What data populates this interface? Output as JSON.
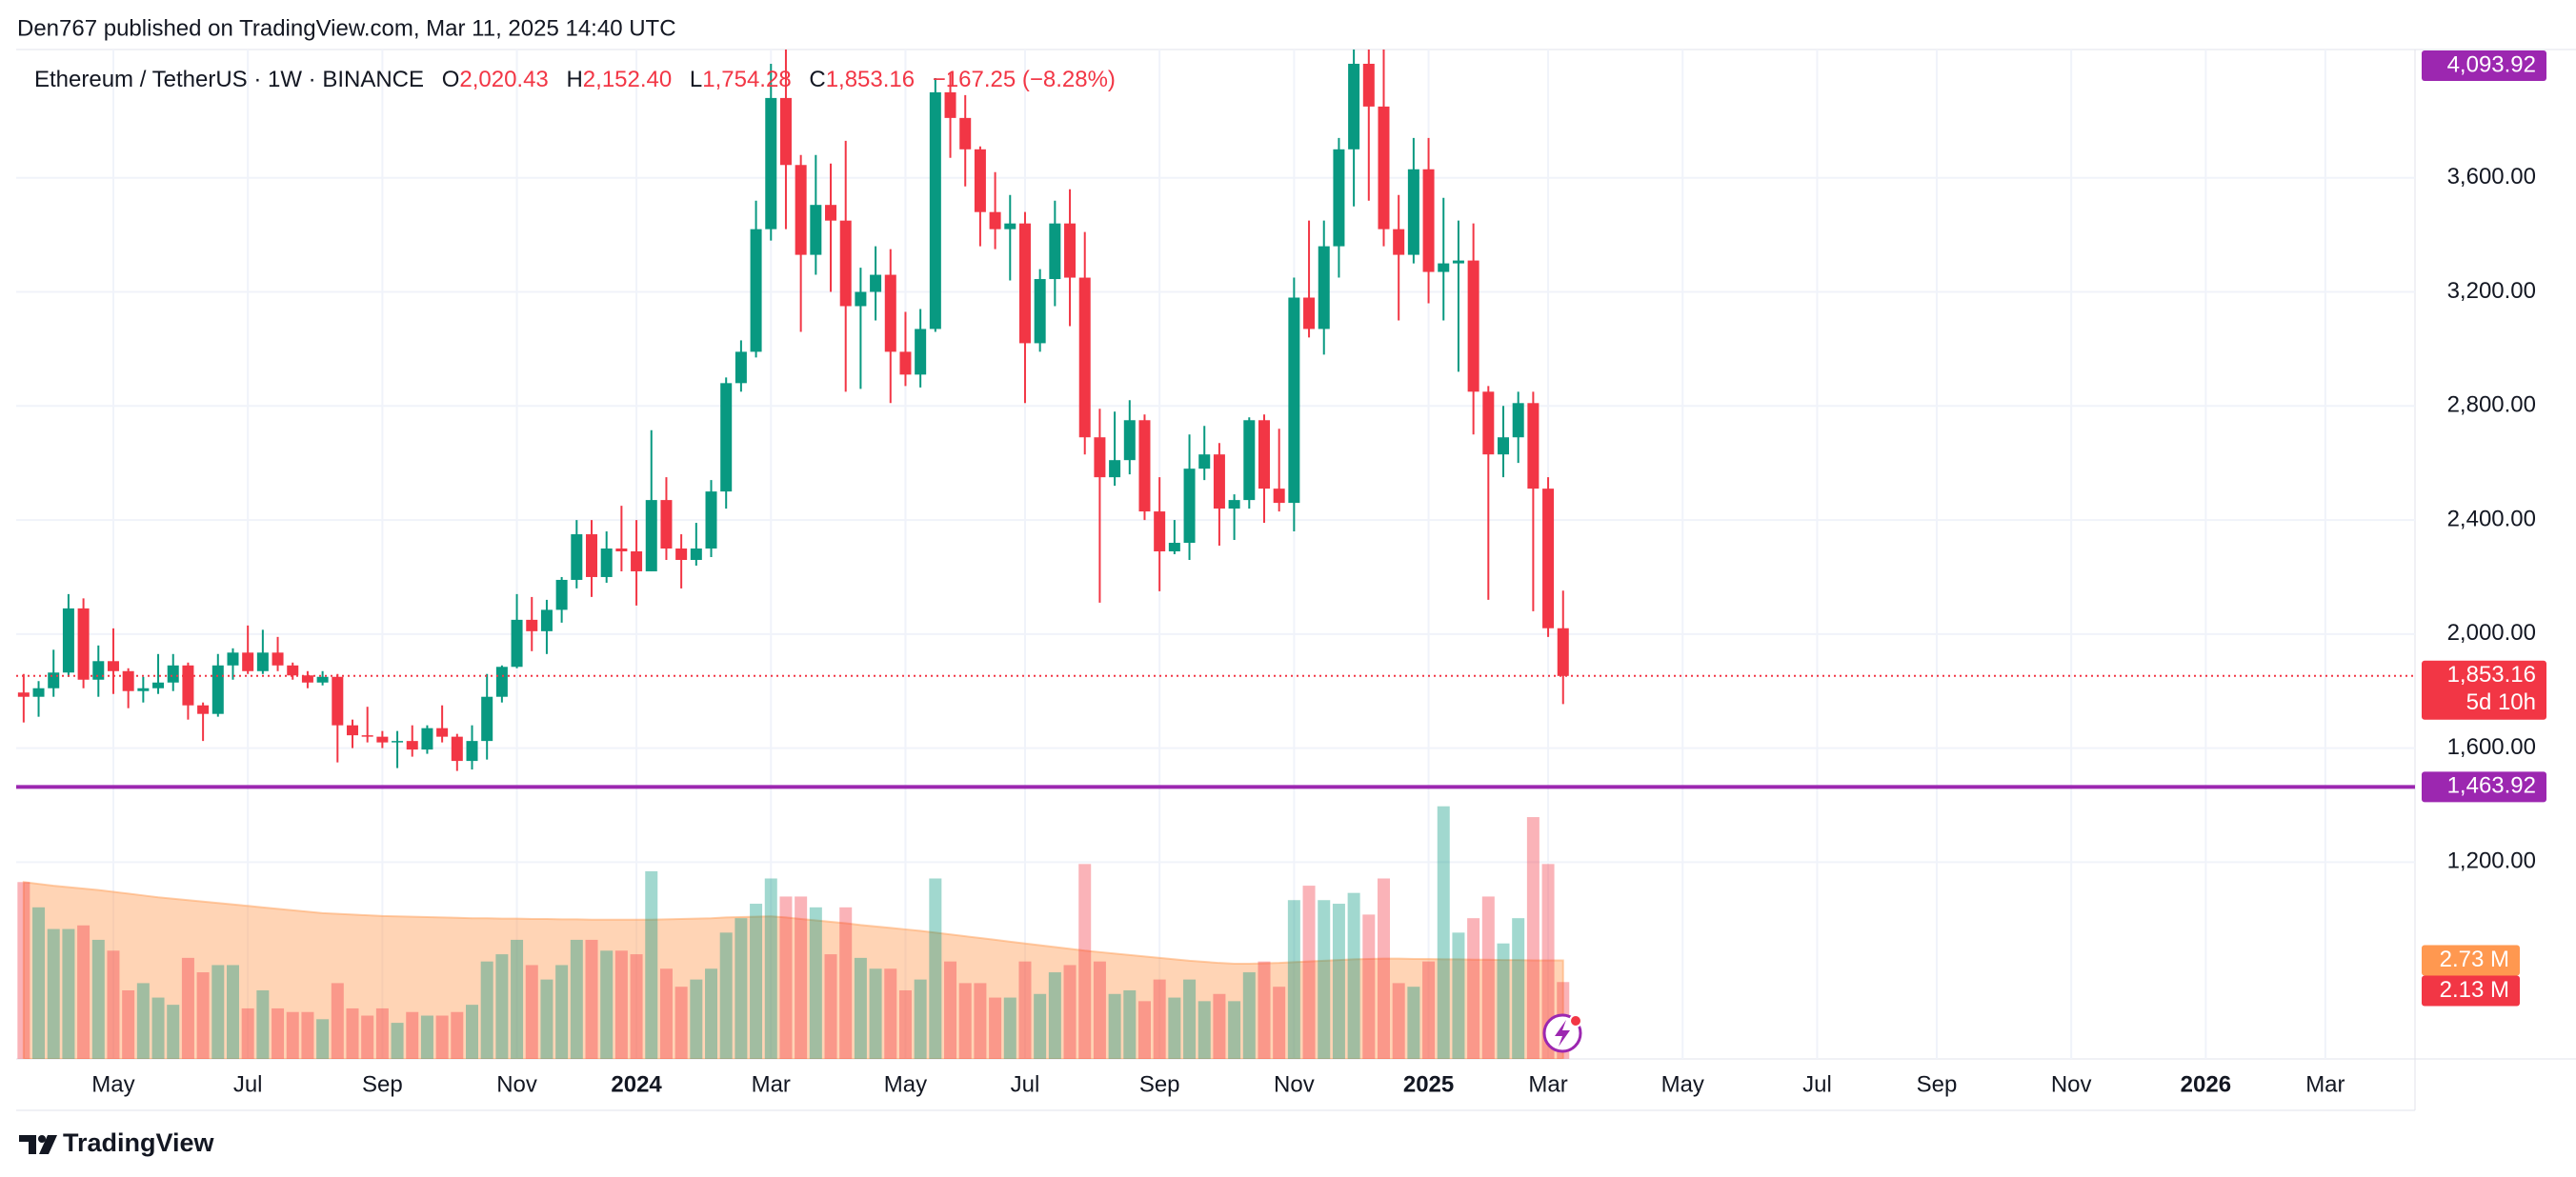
{
  "header": {
    "published": "Den767 published on TradingView.com, Mar 11, 2025 14:40 UTC"
  },
  "footer": {
    "brand": "TradingView"
  },
  "chart_data": {
    "type": "candlestick",
    "legend": {
      "symbol": "Ethereum / TetherUS · 1W · BINANCE",
      "ohlc_keys": [
        "O",
        "H",
        "L",
        "C"
      ],
      "ohlc_labels": [
        "2,020.43",
        "2,152.40",
        "1,754.28",
        "1,853.16"
      ],
      "change": "−167.25 (−8.28%)"
    },
    "up_color": "#089981",
    "down_color": "#f23645",
    "volume_ma_color": "#ff9f5a",
    "xlim": [
      -0.5,
      160
    ],
    "xticks": [
      {
        "value": 6,
        "label": "May"
      },
      {
        "value": 15,
        "label": "Jul"
      },
      {
        "value": 24,
        "label": "Sep"
      },
      {
        "value": 33,
        "label": "Nov"
      },
      {
        "value": 41,
        "label": "2024"
      },
      {
        "value": 50,
        "label": "Mar"
      },
      {
        "value": 59,
        "label": "May"
      },
      {
        "value": 67,
        "label": "Jul"
      },
      {
        "value": 76,
        "label": "Sep"
      },
      {
        "value": 85,
        "label": "Nov"
      },
      {
        "value": 94,
        "label": "2025"
      },
      {
        "value": 102,
        "label": "Mar"
      },
      {
        "value": 111,
        "label": "May"
      },
      {
        "value": 120,
        "label": "Jul"
      },
      {
        "value": 128,
        "label": "Sep"
      },
      {
        "value": 137,
        "label": "Nov"
      },
      {
        "value": 146,
        "label": "2026"
      },
      {
        "value": 154,
        "label": "Mar"
      }
    ],
    "ylim": [
      510,
      4050
    ],
    "yticks": [
      {
        "value": 1200,
        "label": "1,200.00"
      },
      {
        "value": 1600,
        "label": "1,600.00"
      },
      {
        "value": 2000,
        "label": "2,000.00"
      },
      {
        "value": 2400,
        "label": "2,400.00"
      },
      {
        "value": 2800,
        "label": "2,800.00"
      },
      {
        "value": 3200,
        "label": "3,200.00"
      },
      {
        "value": 3600,
        "label": "3,600.00"
      }
    ],
    "grid": true,
    "open": [
      1795,
      1780,
      1810,
      1865,
      2090,
      1840,
      1905,
      1870,
      1800,
      1810,
      1830,
      1890,
      1750,
      1720,
      1890,
      1935,
      1870,
      1935,
      1890,
      1855,
      1830,
      1850,
      1680,
      1645,
      1640,
      1620,
      1625,
      1595,
      1670,
      1640,
      1555,
      1625,
      1780,
      1885,
      2050,
      2010,
      2085,
      2190,
      2350,
      2200,
      2300,
      2290,
      2220,
      2470,
      2300,
      2260,
      2300,
      2500,
      2880,
      2990,
      3420,
      3880,
      3645,
      3330,
      3505,
      3450,
      3150,
      3200,
      3260,
      2990,
      2910,
      3070,
      3900,
      3810,
      3700,
      3480,
      3420,
      3440,
      3020,
      3245,
      3440,
      3250,
      2690,
      2550,
      2610,
      2750,
      2430,
      2290,
      2320,
      2580,
      2630,
      2440,
      2470,
      2750,
      2510,
      2460,
      3180,
      3070,
      3360,
      3700,
      4000,
      3850,
      3420,
      3330,
      3630,
      3270,
      3300,
      3310,
      2850,
      2630,
      2690,
      2810,
      2510,
      2020.43
    ],
    "high": [
      1860,
      1835,
      1945,
      2140,
      2125,
      1960,
      2020,
      1880,
      1850,
      1930,
      1930,
      1900,
      1760,
      1930,
      1950,
      2030,
      2015,
      1990,
      1900,
      1870,
      1870,
      1860,
      1700,
      1745,
      1660,
      1660,
      1680,
      1680,
      1750,
      1650,
      1680,
      1860,
      1890,
      2140,
      2130,
      2120,
      2200,
      2400,
      2400,
      2360,
      2450,
      2400,
      2715,
      2550,
      2350,
      2390,
      2540,
      2900,
      3030,
      3520,
      4000,
      4094,
      3680,
      3680,
      3650,
      3730,
      3285,
      3360,
      3350,
      3130,
      3140,
      3950,
      3970,
      3890,
      3710,
      3620,
      3540,
      3480,
      3280,
      3520,
      3560,
      3410,
      2790,
      2780,
      2820,
      2770,
      2550,
      2400,
      2700,
      2730,
      2670,
      2490,
      2760,
      2770,
      2720,
      3250,
      3450,
      3450,
      3740,
      4090,
      4050,
      4107,
      3540,
      3740,
      3740,
      3530,
      3450,
      3440,
      2870,
      2800,
      2850,
      2850,
      2550,
      2152.4
    ],
    "low": [
      1690,
      1710,
      1780,
      1850,
      1810,
      1780,
      1790,
      1740,
      1760,
      1790,
      1800,
      1700,
      1625,
      1710,
      1840,
      1860,
      1860,
      1870,
      1840,
      1810,
      1820,
      1550,
      1600,
      1620,
      1600,
      1530,
      1570,
      1580,
      1620,
      1520,
      1525,
      1560,
      1760,
      1880,
      1940,
      1930,
      2040,
      2160,
      2130,
      2180,
      2220,
      2100,
      2220,
      2260,
      2160,
      2240,
      2270,
      2440,
      2850,
      2970,
      3380,
      3420,
      3060,
      3260,
      3200,
      2850,
      2860,
      3100,
      2810,
      2870,
      2865,
      3060,
      3670,
      3570,
      3360,
      3350,
      3240,
      2810,
      2990,
      3150,
      3080,
      2630,
      2110,
      2520,
      2560,
      2400,
      2150,
      2280,
      2260,
      2540,
      2310,
      2330,
      2440,
      2390,
      2430,
      2360,
      3040,
      2980,
      3250,
      3500,
      3520,
      3360,
      3100,
      3300,
      3160,
      3100,
      2920,
      2700,
      2120,
      2550,
      2600,
      2080,
      1990,
      1754.28
    ],
    "close": [
      1780,
      1810,
      1865,
      2090,
      1840,
      1905,
      1870,
      1800,
      1810,
      1830,
      1890,
      1750,
      1720,
      1890,
      1935,
      1870,
      1935,
      1890,
      1855,
      1830,
      1850,
      1680,
      1645,
      1640,
      1620,
      1625,
      1595,
      1670,
      1640,
      1555,
      1625,
      1780,
      1885,
      2050,
      2010,
      2085,
      2190,
      2350,
      2200,
      2300,
      2290,
      2220,
      2470,
      2300,
      2260,
      2300,
      2500,
      2880,
      2990,
      3420,
      3880,
      3645,
      3330,
      3505,
      3450,
      3150,
      3200,
      3260,
      2990,
      2910,
      3070,
      3900,
      3810,
      3700,
      3480,
      3420,
      3440,
      3020,
      3245,
      3440,
      3250,
      2690,
      2550,
      2610,
      2750,
      2430,
      2290,
      2320,
      2580,
      2630,
      2440,
      2470,
      2750,
      2510,
      2460,
      3180,
      3070,
      3360,
      3700,
      4000,
      3850,
      3420,
      3330,
      3630,
      3270,
      3300,
      3310,
      2850,
      2630,
      2690,
      2810,
      2510,
      2020.43,
      1853.16
    ],
    "volume_lim": [
      0,
      10
    ],
    "volume": [
      4.9,
      4.2,
      3.6,
      3.6,
      3.7,
      3.3,
      3.0,
      1.9,
      2.1,
      1.7,
      1.5,
      2.8,
      2.4,
      2.6,
      2.6,
      1.4,
      1.9,
      1.4,
      1.3,
      1.3,
      1.1,
      2.1,
      1.4,
      1.2,
      1.4,
      1.0,
      1.3,
      1.2,
      1.2,
      1.3,
      1.5,
      2.7,
      2.9,
      3.3,
      2.6,
      2.2,
      2.6,
      3.3,
      3.3,
      3.0,
      3.0,
      2.9,
      5.2,
      2.5,
      2.0,
      2.2,
      2.5,
      3.5,
      3.9,
      4.3,
      5.0,
      4.5,
      4.5,
      4.2,
      2.9,
      4.2,
      2.8,
      2.5,
      2.5,
      1.9,
      2.2,
      5.0,
      2.7,
      2.1,
      2.1,
      1.7,
      1.7,
      2.7,
      1.8,
      2.4,
      2.6,
      5.4,
      2.7,
      1.8,
      1.9,
      1.6,
      2.2,
      1.7,
      2.2,
      1.6,
      1.8,
      1.6,
      2.4,
      2.7,
      2.0,
      4.4,
      4.8,
      4.4,
      4.3,
      4.6,
      4.0,
      5.0,
      2.1,
      2.0,
      2.7,
      7.0,
      3.5,
      3.9,
      4.5,
      3.2,
      3.9,
      6.7,
      5.4,
      2.13
    ],
    "volume_ma": [
      4.9,
      4.85,
      4.8,
      4.76,
      4.72,
      4.68,
      4.63,
      4.58,
      4.53,
      4.48,
      4.44,
      4.4,
      4.36,
      4.32,
      4.28,
      4.24,
      4.2,
      4.16,
      4.12,
      4.08,
      4.04,
      4.02,
      4.0,
      3.98,
      3.96,
      3.95,
      3.94,
      3.93,
      3.92,
      3.91,
      3.9,
      3.9,
      3.89,
      3.89,
      3.88,
      3.88,
      3.87,
      3.87,
      3.86,
      3.86,
      3.86,
      3.86,
      3.86,
      3.87,
      3.88,
      3.89,
      3.9,
      3.92,
      3.93,
      3.94,
      3.95,
      3.92,
      3.88,
      3.84,
      3.8,
      3.76,
      3.71,
      3.67,
      3.63,
      3.59,
      3.55,
      3.5,
      3.45,
      3.4,
      3.35,
      3.3,
      3.25,
      3.2,
      3.15,
      3.1,
      3.05,
      3.0,
      2.96,
      2.92,
      2.88,
      2.84,
      2.8,
      2.76,
      2.72,
      2.69,
      2.66,
      2.64,
      2.64,
      2.65,
      2.66,
      2.68,
      2.7,
      2.72,
      2.74,
      2.76,
      2.77,
      2.78,
      2.78,
      2.77,
      2.77,
      2.76,
      2.76,
      2.75,
      2.75,
      2.74,
      2.74,
      2.73,
      2.73,
      2.73
    ],
    "price_labels": [
      {
        "value": 4093.92,
        "label": "4,093.92",
        "color": "#9c27b0",
        "line": "solid"
      },
      {
        "value": 1853.16,
        "label": "1,853.16",
        "sub": "5d 10h",
        "color": "#f23645",
        "line": "dotted"
      },
      {
        "value": 1463.92,
        "label": "1,463.92",
        "color": "#9c27b0",
        "line": "solid"
      }
    ],
    "volume_labels": [
      {
        "value": 2.73,
        "label": "2.73 M",
        "color": "#ff9850"
      },
      {
        "value": 2.13,
        "label": "2.13 M",
        "color": "#f23645"
      }
    ]
  }
}
